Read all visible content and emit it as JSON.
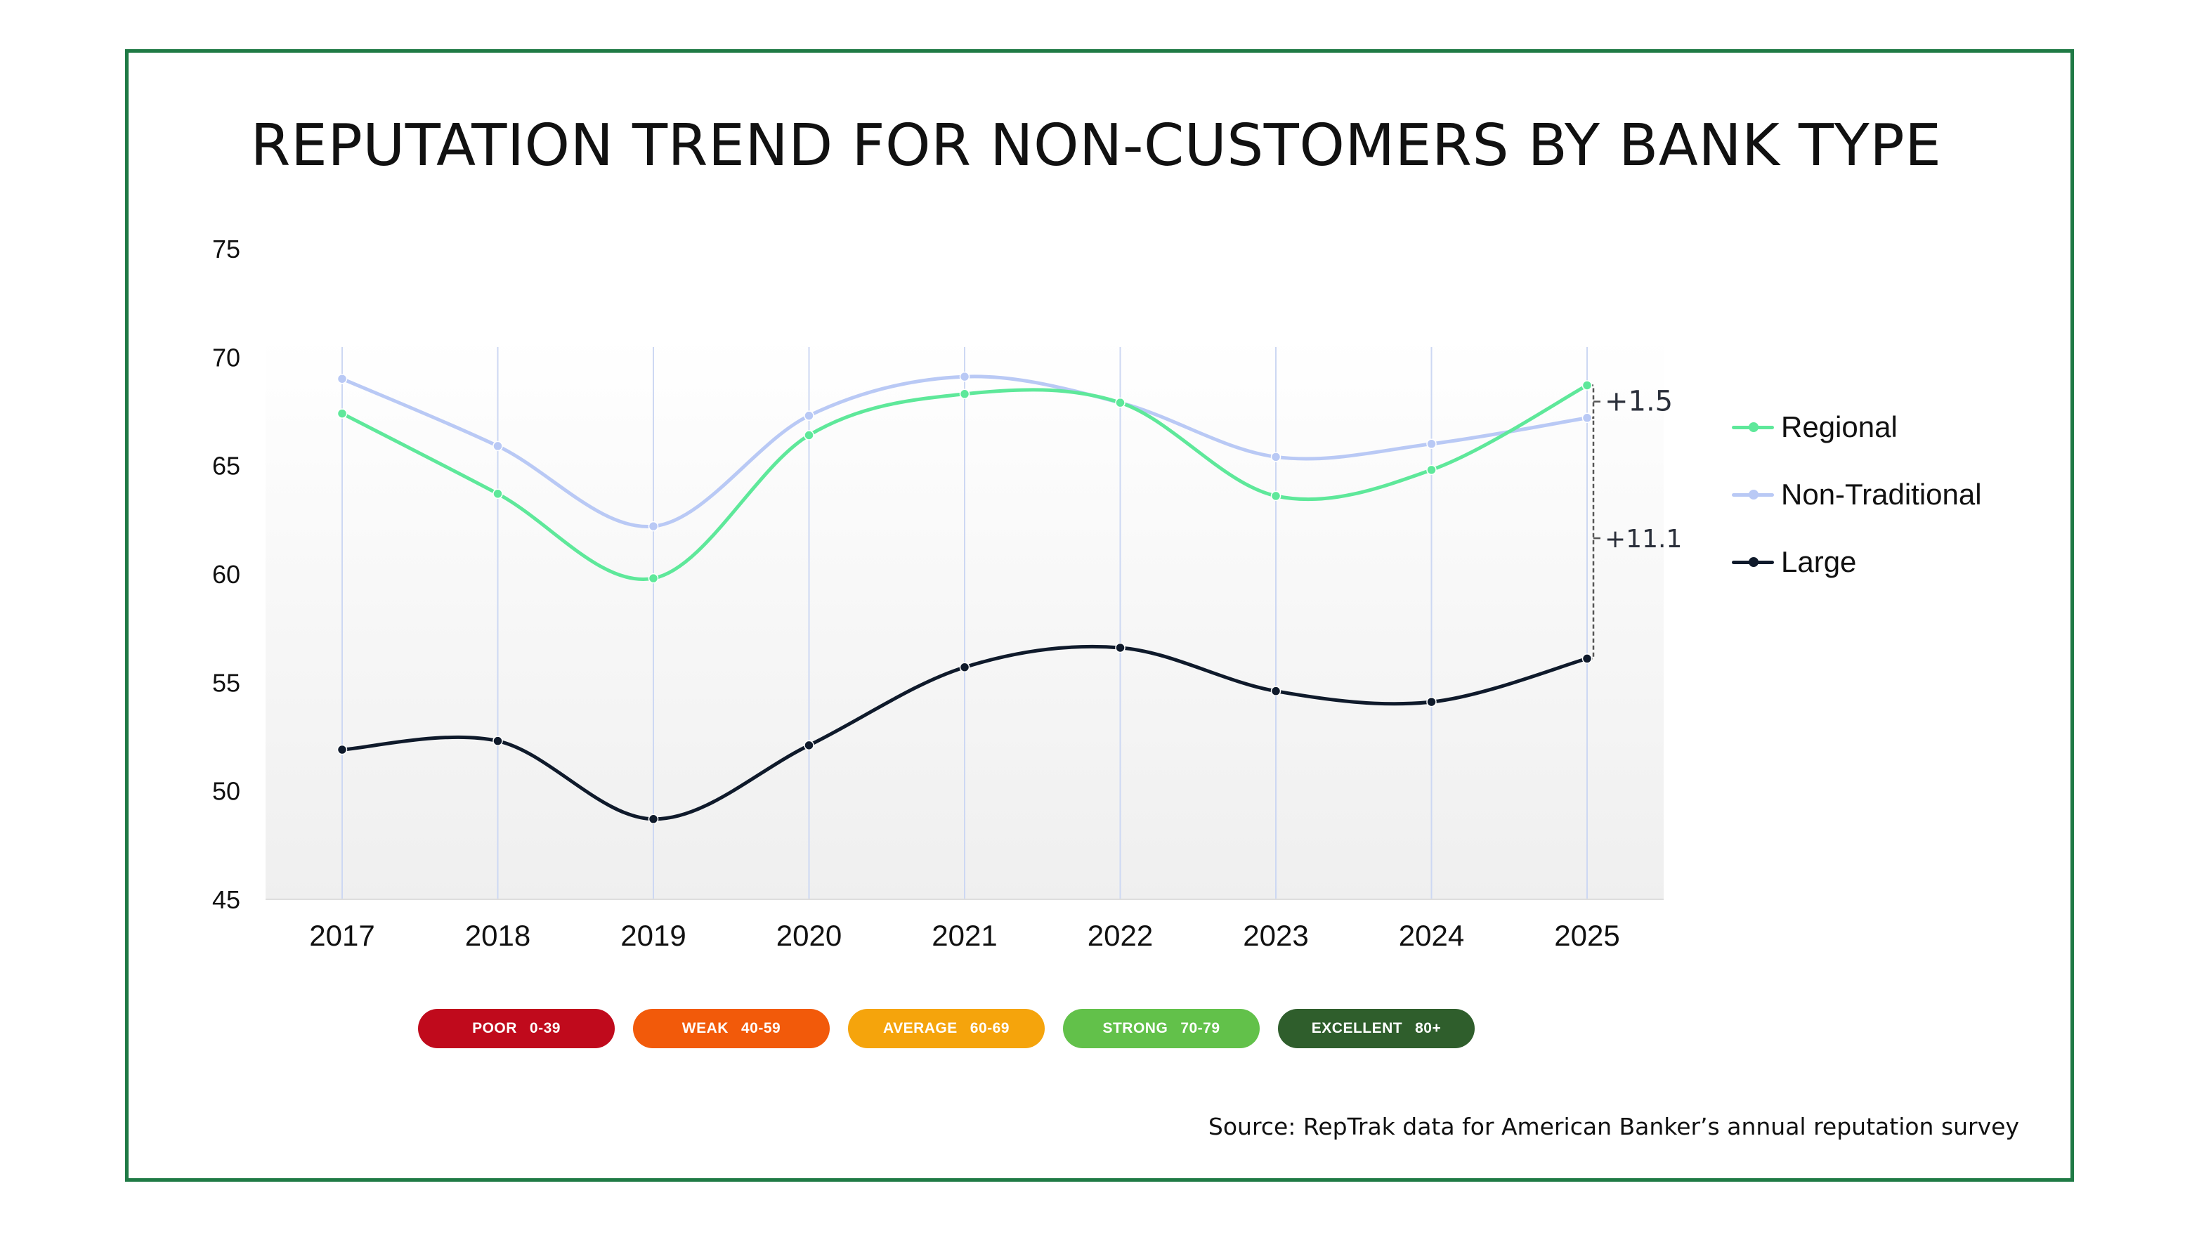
{
  "title": "REPUTATION TREND FOR NON-CUSTOMERS BY BANK TYPE",
  "source": "Source: RepTrak data for American Banker’s annual reputation survey",
  "chart_data": {
    "type": "line",
    "x": [
      "2017",
      "2018",
      "2019",
      "2020",
      "2021",
      "2022",
      "2023",
      "2024",
      "2025"
    ],
    "ylim": [
      45,
      75
    ],
    "yticks": [
      45,
      50,
      55,
      60,
      65,
      70,
      75
    ],
    "grid": "vertical",
    "legend_position": "right",
    "series": [
      {
        "name": "Regional",
        "color": "#5ee89a",
        "values": [
          67.4,
          63.7,
          59.8,
          66.4,
          68.3,
          67.9,
          63.6,
          64.8,
          68.7
        ]
      },
      {
        "name": "Non-Traditional",
        "color": "#b9c9f5",
        "values": [
          69.0,
          65.9,
          62.2,
          67.3,
          69.1,
          67.9,
          65.4,
          66.0,
          67.2
        ]
      },
      {
        "name": "Large",
        "color": "#0f1a2b",
        "values": [
          51.9,
          52.3,
          48.7,
          52.1,
          55.7,
          56.6,
          54.6,
          54.1,
          56.1
        ]
      }
    ],
    "annotations": [
      {
        "text": "+1.5",
        "x": "2025",
        "from": 67.2,
        "to": 68.7
      },
      {
        "text": "+11.1",
        "x": "2025",
        "from": 56.1,
        "to": 67.2
      }
    ]
  },
  "rating_scale": [
    {
      "label": "POOR",
      "range": "0-39",
      "color": "#c00a1c"
    },
    {
      "label": "WEAK",
      "range": "40-59",
      "color": "#f25a0a"
    },
    {
      "label": "AVERAGE",
      "range": "60-69",
      "color": "#f5a40c"
    },
    {
      "label": "STRONG",
      "range": "70-79",
      "color": "#62c14a"
    },
    {
      "label": "EXCELLENT",
      "range": "80+",
      "color": "#2f5e2c"
    }
  ]
}
